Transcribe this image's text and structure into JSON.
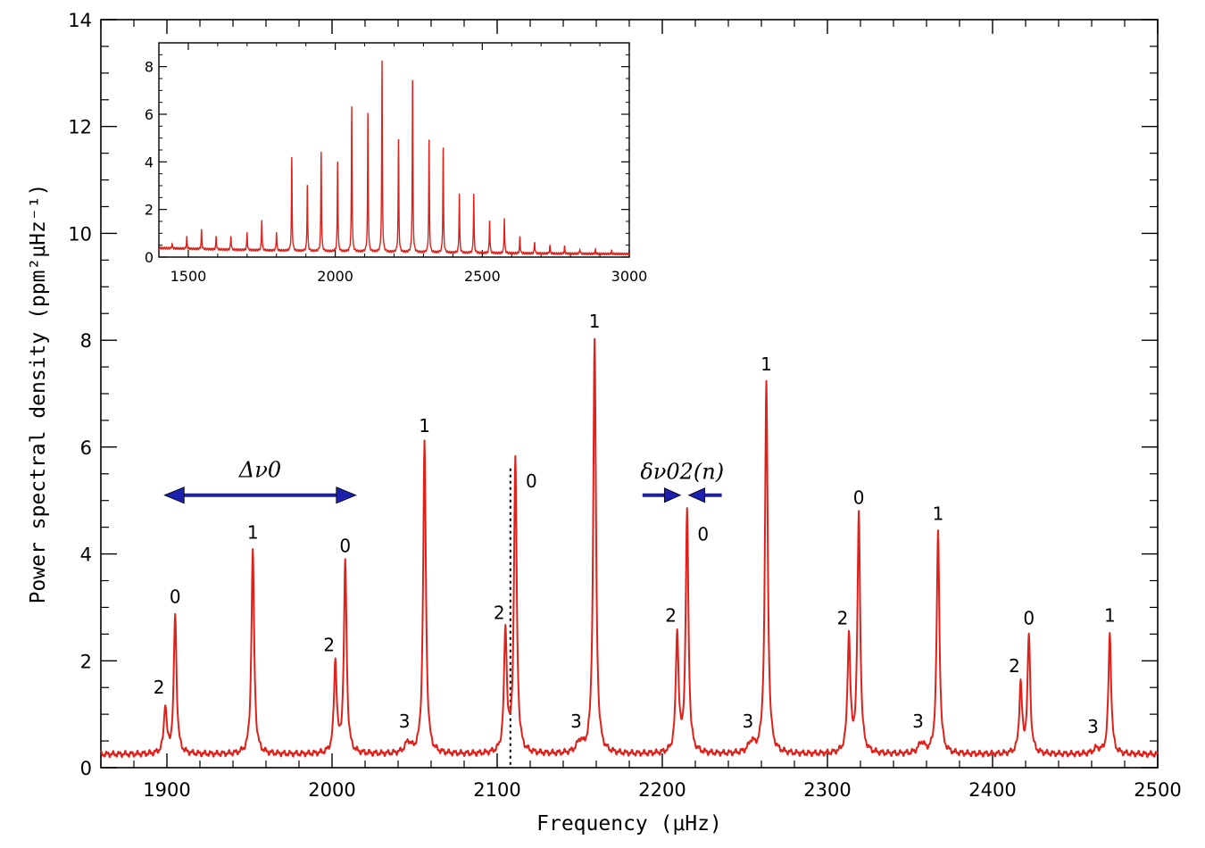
{
  "chart_data": [
    {
      "type": "line",
      "xlabel": "Frequency (μHz)",
      "ylabel": "Power spectral density (ppm²μHz⁻¹)",
      "xlim": [
        1860,
        2500
      ],
      "ylim": [
        0,
        14
      ],
      "x_ticks": [
        1900,
        2000,
        2100,
        2200,
        2300,
        2400,
        2500
      ],
      "y_ticks": [
        0,
        2,
        4,
        6,
        8,
        10,
        12,
        14
      ],
      "line_color": "#e0201a",
      "baseline": 0.25,
      "peaks": [
        {
          "x": 1899,
          "y": 1.15,
          "degree": "2"
        },
        {
          "x": 1905,
          "y": 2.85,
          "degree": "0"
        },
        {
          "x": 1952,
          "y": 4.05,
          "degree": "1"
        },
        {
          "x": 2002,
          "y": 1.95,
          "degree": "2"
        },
        {
          "x": 2008,
          "y": 3.8,
          "degree": "0"
        },
        {
          "x": 2046,
          "y": 0.45,
          "degree": "3"
        },
        {
          "x": 2056,
          "y": 6.05,
          "degree": "1"
        },
        {
          "x": 2105,
          "y": 2.55,
          "degree": "2"
        },
        {
          "x": 2111,
          "y": 5.75,
          "degree": "0"
        },
        {
          "x": 2150,
          "y": 0.45,
          "degree": "3"
        },
        {
          "x": 2159,
          "y": 8.0,
          "degree": "1"
        },
        {
          "x": 2209,
          "y": 2.5,
          "degree": "2"
        },
        {
          "x": 2215,
          "y": 4.75,
          "degree": "0"
        },
        {
          "x": 2254,
          "y": 0.45,
          "degree": "3"
        },
        {
          "x": 2263,
          "y": 7.2,
          "degree": "1"
        },
        {
          "x": 2313,
          "y": 2.45,
          "degree": "2"
        },
        {
          "x": 2319,
          "y": 4.7,
          "degree": "0"
        },
        {
          "x": 2357,
          "y": 0.45,
          "degree": "3"
        },
        {
          "x": 2367,
          "y": 4.4,
          "degree": "1"
        },
        {
          "x": 2417,
          "y": 1.55,
          "degree": "2"
        },
        {
          "x": 2422,
          "y": 2.45,
          "degree": "0"
        },
        {
          "x": 2463,
          "y": 0.35,
          "degree": "3"
        },
        {
          "x": 2471,
          "y": 2.5,
          "degree": "1"
        }
      ],
      "reference_line_x": 2108,
      "annotations": [
        {
          "text": "Δν0",
          "from_x": 1905,
          "to_x": 2008,
          "y": 5.1
        },
        {
          "text": "δν02(n)",
          "left_arrow_x": [
            2188,
            2211
          ],
          "right_arrow_x": [
            2216,
            2236
          ],
          "y": 5.1
        }
      ]
    },
    {
      "type": "line",
      "title": "",
      "xlim": [
        1400,
        3000
      ],
      "ylim": [
        0,
        9
      ],
      "x_ticks": [
        1500,
        2000,
        2500,
        3000
      ],
      "y_ticks": [
        0,
        2,
        4,
        6,
        8
      ],
      "line_color": "#e0201a",
      "peaks": [
        {
          "x": 1445,
          "y": 0.2
        },
        {
          "x": 1495,
          "y": 0.5
        },
        {
          "x": 1545,
          "y": 0.8
        },
        {
          "x": 1595,
          "y": 0.55
        },
        {
          "x": 1645,
          "y": 0.6
        },
        {
          "x": 1700,
          "y": 0.75
        },
        {
          "x": 1750,
          "y": 1.3
        },
        {
          "x": 1800,
          "y": 0.8
        },
        {
          "x": 1852,
          "y": 3.9
        },
        {
          "x": 1905,
          "y": 2.8
        },
        {
          "x": 1952,
          "y": 4.2
        },
        {
          "x": 2008,
          "y": 3.8
        },
        {
          "x": 2056,
          "y": 6.1
        },
        {
          "x": 2111,
          "y": 5.8
        },
        {
          "x": 2159,
          "y": 8.0
        },
        {
          "x": 2215,
          "y": 4.7
        },
        {
          "x": 2263,
          "y": 7.2
        },
        {
          "x": 2319,
          "y": 4.7
        },
        {
          "x": 2367,
          "y": 4.4
        },
        {
          "x": 2422,
          "y": 2.5
        },
        {
          "x": 2471,
          "y": 2.5
        },
        {
          "x": 2525,
          "y": 1.4
        },
        {
          "x": 2575,
          "y": 1.5
        },
        {
          "x": 2628,
          "y": 0.7
        },
        {
          "x": 2678,
          "y": 0.5
        },
        {
          "x": 2730,
          "y": 0.35
        },
        {
          "x": 2780,
          "y": 0.3
        },
        {
          "x": 2832,
          "y": 0.2
        },
        {
          "x": 2885,
          "y": 0.15
        },
        {
          "x": 2940,
          "y": 0.12
        }
      ]
    }
  ]
}
